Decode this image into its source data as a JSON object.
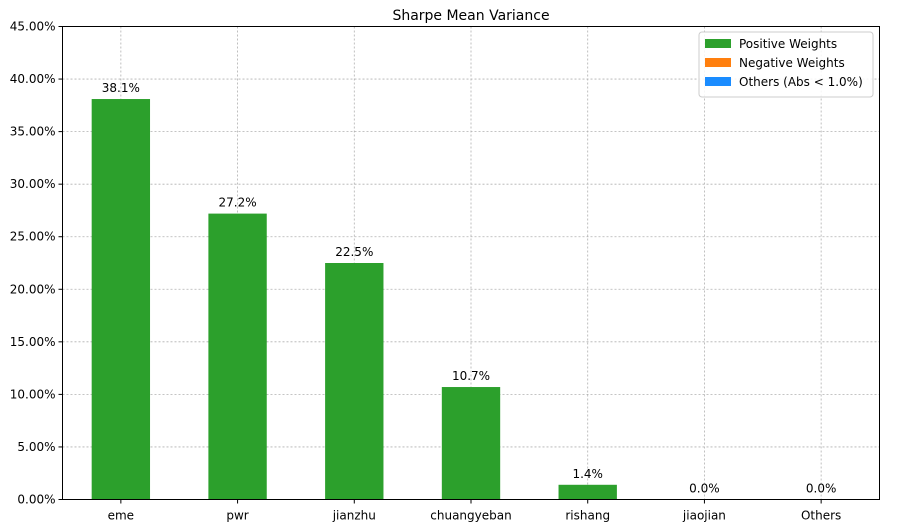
{
  "chart_data": {
    "type": "bar",
    "title": "Sharpe Mean Variance",
    "xlabel": "",
    "ylabel": "",
    "categories": [
      "eme",
      "pwr",
      "jianzhu",
      "chuangyeban",
      "rishang",
      "jiaojian",
      "Others"
    ],
    "values": [
      38.1,
      27.2,
      22.5,
      10.7,
      1.4,
      0.0,
      0.0
    ],
    "data_labels": [
      "38.1%",
      "27.2%",
      "22.5%",
      "10.7%",
      "1.4%",
      "0.0%",
      "0.0%"
    ],
    "ylim": [
      0,
      45
    ],
    "yticks": [
      0,
      5,
      10,
      15,
      20,
      25,
      30,
      35,
      40,
      45
    ],
    "ytick_labels": [
      "0.00%",
      "5.00%",
      "10.00%",
      "15.00%",
      "20.00%",
      "25.00%",
      "30.00%",
      "35.00%",
      "40.00%",
      "45.00%"
    ],
    "grid": true,
    "legend_position": "top-right",
    "legend": [
      {
        "label": "Positive Weights",
        "color": "#2ca02c"
      },
      {
        "label": "Negative Weights",
        "color": "#ff7f0e"
      },
      {
        "label": "Others (Abs < 1.0%)",
        "color": "#1a8cff"
      }
    ],
    "bar_color": "#2ca02c"
  }
}
